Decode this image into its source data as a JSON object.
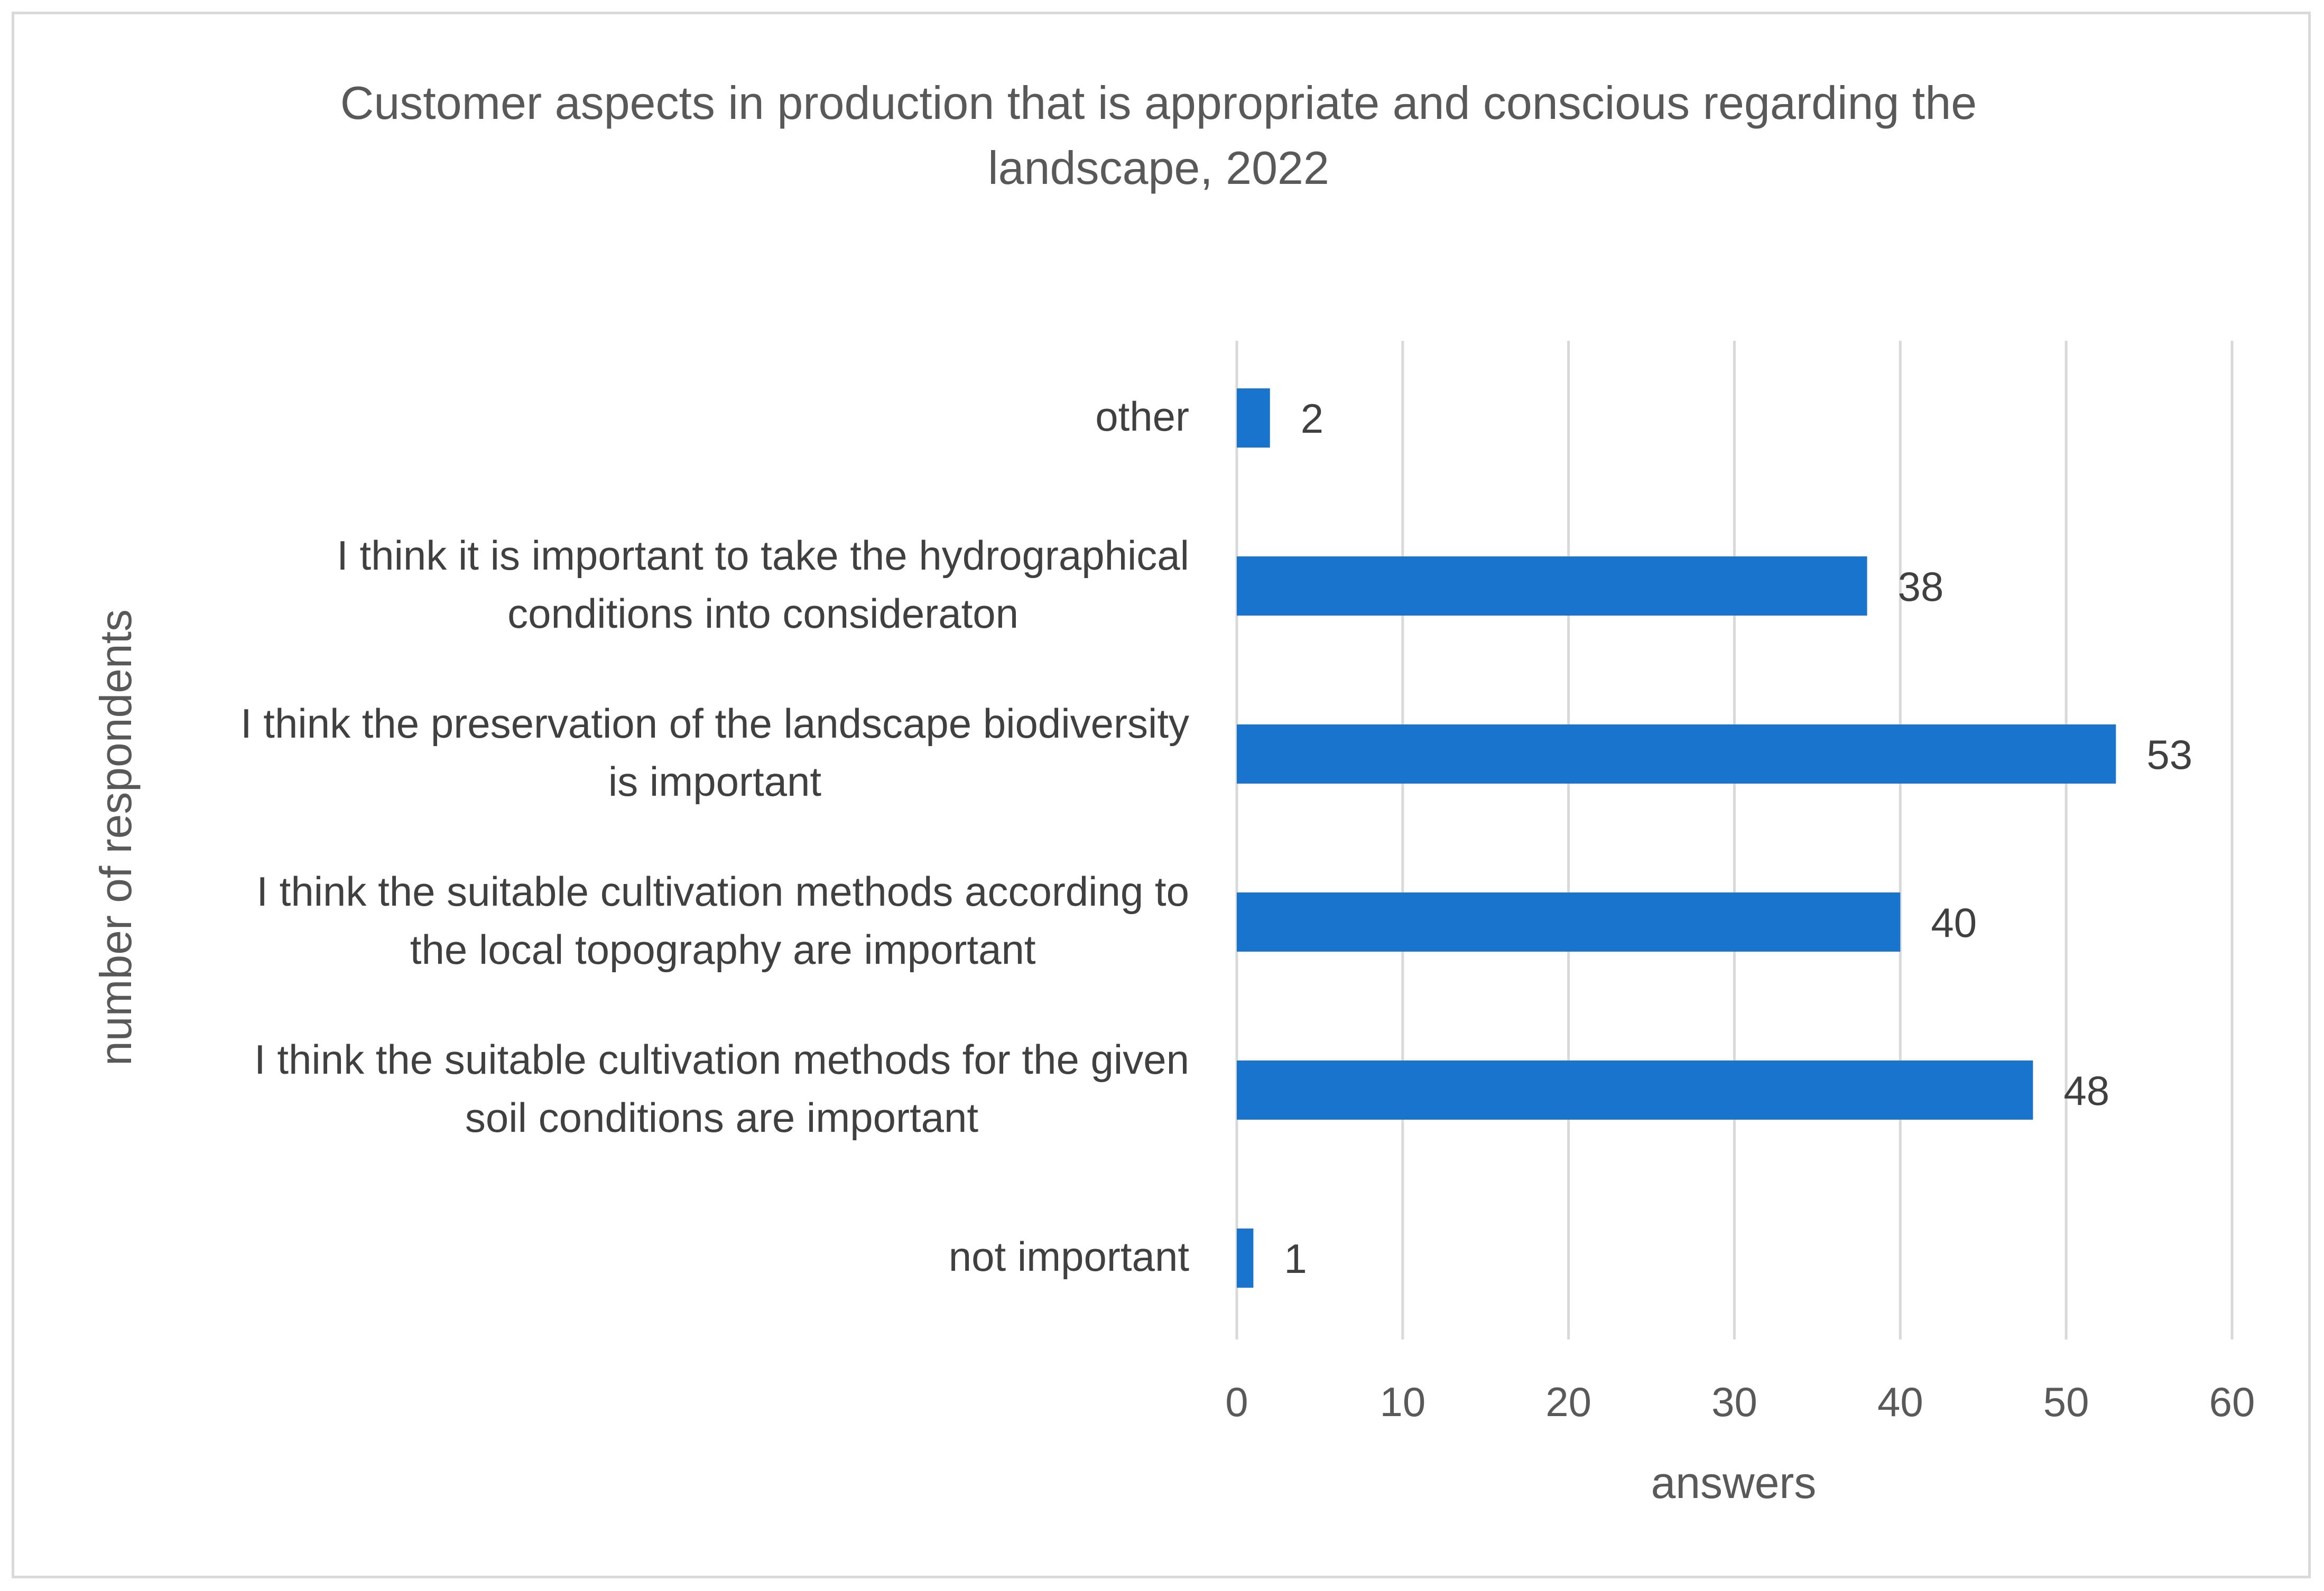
{
  "chart_data": {
    "type": "bar",
    "orientation": "horizontal",
    "title": "Customer aspects in production that is appropriate and conscious regarding the landscape, 2022",
    "title_lines": [
      "Customer aspects in production that is appropriate and conscious regarding the",
      "landscape, 2022"
    ],
    "xlabel": "answers",
    "ylabel": "number of respondents",
    "xlim": [
      0,
      60
    ],
    "xticks": [
      0,
      10,
      20,
      30,
      40,
      50,
      60
    ],
    "grid": true,
    "legend": "none",
    "bar_color": "#1874CD",
    "categories": [
      {
        "lines": [
          "other"
        ],
        "value": 2
      },
      {
        "lines": [
          "I think it is important to take the hydrographical",
          "conditions into consideraton"
        ],
        "value": 38
      },
      {
        "lines": [
          "I think the preservation of the landscape biodiversity",
          "is important"
        ],
        "value": 53
      },
      {
        "lines": [
          "I think the suitable cultivation methods according to",
          "the local topography are important"
        ],
        "value": 40
      },
      {
        "lines": [
          "I think the suitable cultivation methods for the given",
          "soil conditions are important"
        ],
        "value": 48
      },
      {
        "lines": [
          "not important"
        ],
        "value": 1
      }
    ]
  }
}
